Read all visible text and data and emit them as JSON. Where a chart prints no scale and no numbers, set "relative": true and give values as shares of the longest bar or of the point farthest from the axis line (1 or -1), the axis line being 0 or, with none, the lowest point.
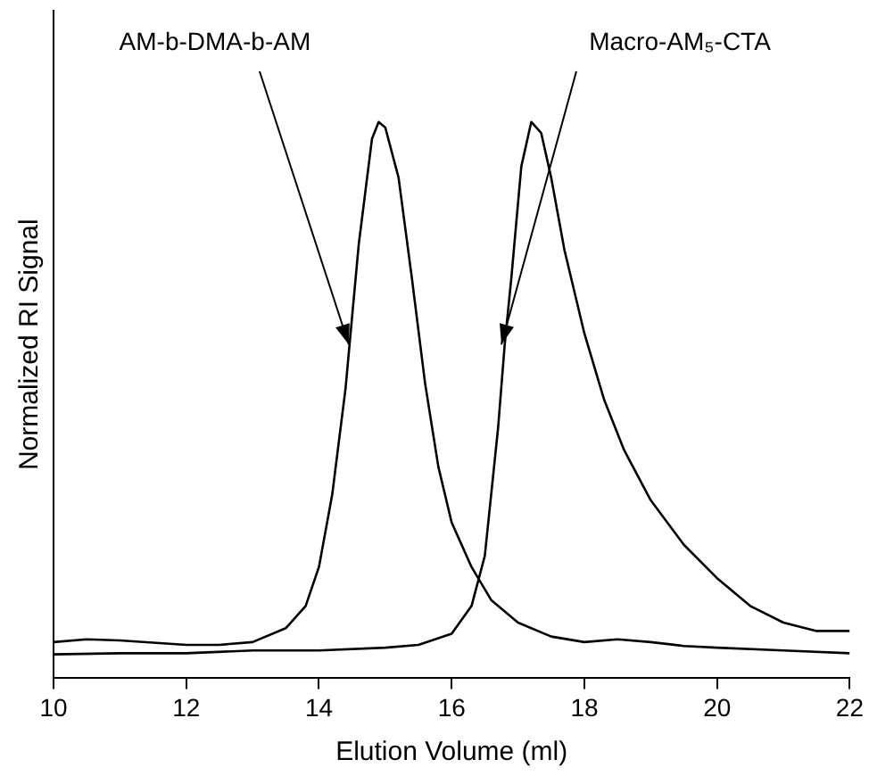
{
  "chart_data": {
    "type": "line",
    "xlabel": "Elution Volume (ml)",
    "ylabel": "Normalized RI Signal",
    "relative": true,
    "xlim": [
      10,
      22
    ],
    "xticks": [
      10,
      12,
      14,
      16,
      18,
      20,
      22
    ],
    "grid": false,
    "legend": false,
    "marker": "none",
    "line_style": "solid",
    "series": [
      {
        "color": "#000000",
        "x": [
          10,
          10.5,
          11,
          12,
          12.5,
          13,
          13.5,
          13.8,
          14,
          14.2,
          14.4,
          14.6,
          14.8,
          14.9,
          15,
          15.2,
          15.4,
          15.6,
          15.8,
          16,
          16.3,
          16.6,
          17,
          17.5,
          18,
          18.5,
          19,
          19.5,
          20,
          21,
          22
        ],
        "values": [
          0.065,
          0.07,
          0.068,
          0.06,
          0.06,
          0.065,
          0.09,
          0.13,
          0.2,
          0.33,
          0.52,
          0.78,
          0.97,
          1,
          0.99,
          0.9,
          0.72,
          0.53,
          0.38,
          0.28,
          0.2,
          0.14,
          0.1,
          0.075,
          0.065,
          0.07,
          0.065,
          0.058,
          0.055,
          0.05,
          0.045
        ]
      },
      {
        "color": "#000000",
        "x": [
          10,
          11,
          12,
          13,
          14,
          15,
          15.5,
          16,
          16.3,
          16.5,
          16.7,
          16.8,
          16.9,
          17.05,
          17.2,
          17.35,
          17.5,
          17.7,
          18,
          18.3,
          18.6,
          19,
          19.5,
          20,
          20.5,
          21,
          21.5,
          22
        ],
        "values": [
          0.043,
          0.045,
          0.045,
          0.05,
          0.05,
          0.055,
          0.06,
          0.08,
          0.13,
          0.22,
          0.45,
          0.6,
          0.72,
          0.92,
          1,
          0.98,
          0.9,
          0.77,
          0.62,
          0.5,
          0.41,
          0.32,
          0.24,
          0.18,
          0.13,
          0.1,
          0.085,
          0.085
        ]
      }
    ],
    "annotations": [
      {
        "text": "AM-b-DMA-b-AM",
        "x": 14.45,
        "y": 0.6
      },
      {
        "text": "Macro-AM₅-CTA",
        "x": 16.75,
        "y": 0.6
      }
    ]
  }
}
